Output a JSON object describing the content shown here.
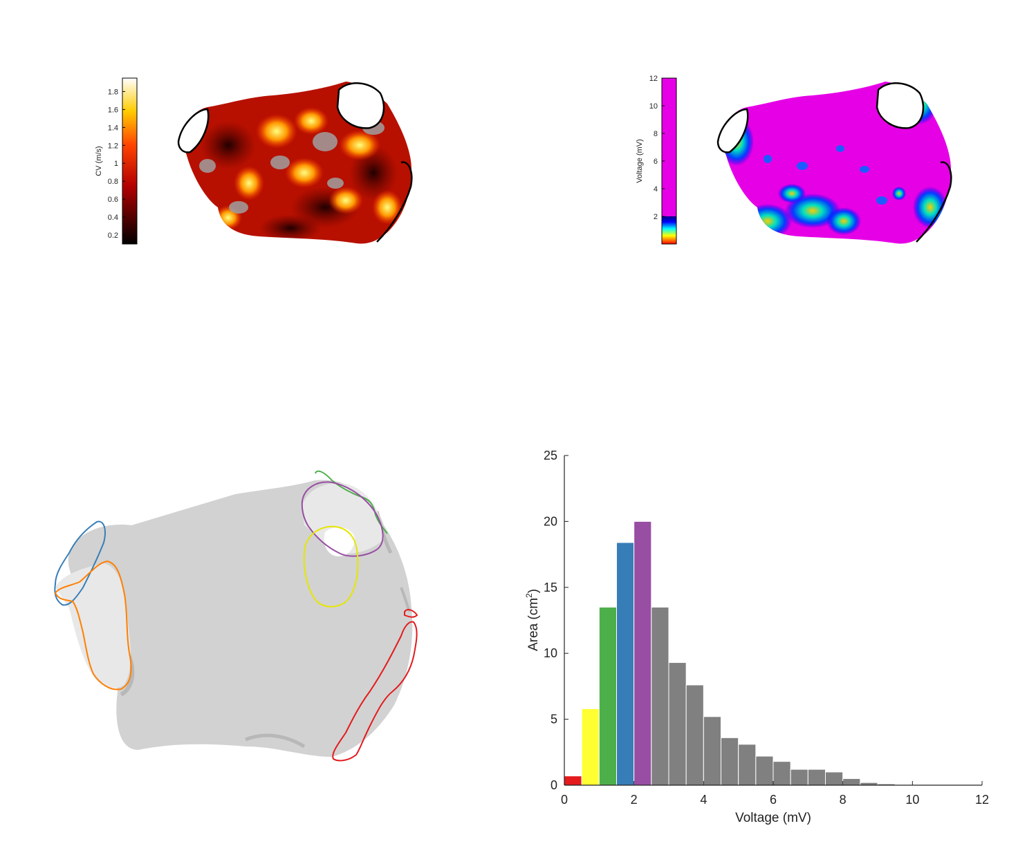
{
  "cv_map": {
    "colorbar_label": "CV (m/s)",
    "ticks": [
      "0.2",
      "0.4",
      "0.6",
      "0.8",
      "1",
      "1.2",
      "1.4",
      "1.6",
      "1.8"
    ],
    "range": [
      0.1,
      1.95
    ]
  },
  "voltage_map": {
    "colorbar_label": "Voltage (mV)",
    "ticks": [
      "2",
      "4",
      "6",
      "8",
      "10",
      "12"
    ],
    "range": [
      0,
      12
    ]
  },
  "region_colors": [
    "#377eb8",
    "#ff7f00",
    "#4daf4a",
    "#984ea3",
    "#e6e600",
    "#e41a1c"
  ],
  "chart_data": {
    "type": "bar",
    "xlabel": "Voltage (mV)",
    "ylabel_main": "Area (cm",
    "ylabel_sup": "2",
    "ylabel_tail": ")",
    "xlim": [
      0,
      12
    ],
    "ylim": [
      0,
      25
    ],
    "xticks": [
      "0",
      "2",
      "4",
      "6",
      "8",
      "10",
      "12"
    ],
    "yticks": [
      "0",
      "5",
      "10",
      "15",
      "20",
      "25"
    ],
    "bin_width": 0.5,
    "bin_starts": [
      0,
      0.5,
      1,
      1.5,
      2,
      2.5,
      3,
      3.5,
      4,
      4.5,
      5,
      5.5,
      6,
      6.5,
      7,
      7.5,
      8,
      8.5,
      9,
      9.5,
      10,
      10.5,
      11,
      11.5
    ],
    "values": [
      0.7,
      5.8,
      13.5,
      18.4,
      20.0,
      13.5,
      9.3,
      7.6,
      5.2,
      3.6,
      3.1,
      2.2,
      1.8,
      1.2,
      1.2,
      1.0,
      0.5,
      0.2,
      0.1,
      0.05,
      0.03,
      0.02,
      0.02,
      0.02
    ],
    "colors": [
      "#e41a1c",
      "#ffff33",
      "#4daf4a",
      "#377eb8",
      "#984ea3",
      "#808080",
      "#808080",
      "#808080",
      "#808080",
      "#808080",
      "#808080",
      "#808080",
      "#808080",
      "#808080",
      "#808080",
      "#808080",
      "#808080",
      "#808080",
      "#808080",
      "#808080",
      "#808080",
      "#808080",
      "#808080",
      "#808080"
    ]
  }
}
